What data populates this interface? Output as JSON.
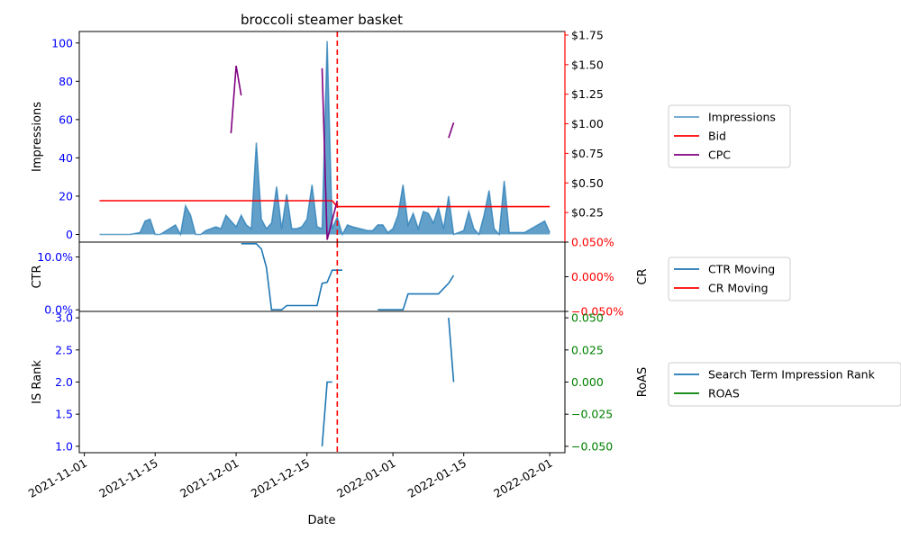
{
  "chart_data": {
    "title": "broccoli steamer basket",
    "xlabel": "Date",
    "x_ticks": [
      "2021-11-01",
      "2021-11-15",
      "2021-12-01",
      "2021-12-15",
      "2022-01-01",
      "2022-01-15",
      "2022-02-01"
    ],
    "x_range": [
      "2021-10-31",
      "2022-02-04"
    ],
    "vline": {
      "date": "2021-12-21",
      "color": "#ff0000",
      "style": "dashed"
    },
    "panels": [
      {
        "type": "area+line",
        "ylabel_left": "Impressions",
        "ylabel_left_color": "#000000",
        "left_tick_color": "#0000ff",
        "ylim_left": [
          -4,
          106
        ],
        "left_ticks": [
          "0",
          "20",
          "40",
          "60",
          "80",
          "100"
        ],
        "left_tick_values": [
          0,
          20,
          40,
          60,
          80,
          100
        ],
        "ylim_right": [
          0,
          1.78
        ],
        "right_ticks": [
          "$0.25",
          "$0.50",
          "$0.75",
          "$1.00",
          "$1.25",
          "$1.50",
          "$1.75"
        ],
        "right_tick_values": [
          0.25,
          0.5,
          0.75,
          1.0,
          1.25,
          1.5,
          1.75
        ],
        "right_tick_color": "#000000",
        "right_axis_color": "#ff0000",
        "series": [
          {
            "name": "Impressions",
            "color": "#1f77b4",
            "axis": "left",
            "kind": "area",
            "x": [
              "2021-11-04",
              "2021-11-06",
              "2021-11-08",
              "2021-11-10",
              "2021-11-12",
              "2021-11-13",
              "2021-11-14",
              "2021-11-15",
              "2021-11-16",
              "2021-11-19",
              "2021-11-20",
              "2021-11-21",
              "2021-11-22",
              "2021-11-23",
              "2021-11-24",
              "2021-11-25",
              "2021-11-27",
              "2021-11-28",
              "2021-11-29",
              "2021-11-30",
              "2021-12-01",
              "2021-12-02",
              "2021-12-03",
              "2021-12-04",
              "2021-12-05",
              "2021-12-06",
              "2021-12-07",
              "2021-12-08",
              "2021-12-09",
              "2021-12-10",
              "2021-12-11",
              "2021-12-12",
              "2021-12-13",
              "2021-12-14",
              "2021-12-15",
              "2021-12-16",
              "2021-12-17",
              "2021-12-18",
              "2021-12-19",
              "2021-12-20",
              "2021-12-21",
              "2021-12-22",
              "2021-12-23",
              "2021-12-24",
              "2021-12-27",
              "2021-12-28",
              "2021-12-29",
              "2021-12-30",
              "2021-12-31",
              "2022-01-01",
              "2022-01-02",
              "2022-01-03",
              "2022-01-04",
              "2022-01-05",
              "2022-01-06",
              "2022-01-07",
              "2022-01-08",
              "2022-01-09",
              "2022-01-10",
              "2022-01-11",
              "2022-01-12",
              "2022-01-13",
              "2022-01-15",
              "2022-01-16",
              "2022-01-17",
              "2022-01-18",
              "2022-01-19",
              "2022-01-20",
              "2022-01-21",
              "2022-01-22",
              "2022-01-23",
              "2022-01-24",
              "2022-01-25",
              "2022-01-26",
              "2022-01-27",
              "2022-01-31",
              "2022-02-01"
            ],
            "y": [
              0,
              0,
              0,
              0,
              1,
              7,
              8,
              0,
              0,
              5,
              0,
              15,
              10,
              0,
              0,
              2,
              4,
              3,
              10,
              7,
              4,
              10,
              5,
              3,
              48,
              8,
              3,
              6,
              25,
              3,
              21,
              3,
              3,
              4,
              8,
              26,
              4,
              3,
              101,
              3,
              9,
              0,
              5,
              4,
              2,
              2,
              5,
              5,
              1,
              3,
              10,
              26,
              5,
              11,
              3,
              12,
              11,
              6,
              14,
              3,
              20,
              0,
              2,
              12,
              3,
              0,
              10,
              23,
              3,
              0,
              28,
              1,
              1,
              1,
              1,
              7,
              1
            ]
          },
          {
            "name": "Bid",
            "color": "#ff0000",
            "axis": "right",
            "kind": "line",
            "x": [
              "2021-11-04",
              "2021-12-20",
              "2021-12-21",
              "2022-02-01"
            ],
            "y": [
              0.35,
              0.35,
              0.3,
              0.3
            ]
          },
          {
            "name": "CPC",
            "color": "#800080",
            "axis": "right",
            "kind": "line",
            "segments": [
              {
                "x": [
                  "2021-11-30",
                  "2021-12-01",
                  "2021-12-02"
                ],
                "y": [
                  0.92,
                  1.49,
                  1.24
                ]
              },
              {
                "x": [
                  "2021-12-18",
                  "2021-12-19",
                  "2021-12-21"
                ],
                "y": [
                  1.47,
                  0.02,
                  0.35
                ]
              },
              {
                "x": [
                  "2022-01-12",
                  "2022-01-13"
                ],
                "y": [
                  0.88,
                  1.01
                ]
              }
            ]
          }
        ],
        "legend": [
          "Impressions",
          "Bid",
          "CPC"
        ]
      },
      {
        "type": "line",
        "ylabel_left": "CTR",
        "ylabel_left_color": "#000000",
        "left_tick_color": "#0000ff",
        "ylim_left": [
          -0.3,
          12.8
        ],
        "left_ticks": [
          "0.0%",
          "10.0%"
        ],
        "left_tick_values": [
          0,
          10
        ],
        "ylabel_right": "CR",
        "ylim_right": [
          -0.05,
          0.05
        ],
        "right_ticks": [
          "0.050%",
          "0.000%",
          "−0.050%"
        ],
        "right_tick_values": [
          0.05,
          0.0,
          -0.05
        ],
        "right_tick_color": "#ff0000",
        "series": [
          {
            "name": "CTR Moving",
            "color": "#1f77b4",
            "axis": "left",
            "kind": "line",
            "segments": [
              {
                "x": [
                  "2021-12-02",
                  "2021-12-05",
                  "2021-12-06",
                  "2021-12-07",
                  "2021-12-08",
                  "2021-12-10",
                  "2021-12-11",
                  "2021-12-17",
                  "2021-12-18",
                  "2021-12-19",
                  "2021-12-20",
                  "2021-12-22"
                ],
                "y": [
                  12.5,
                  12.5,
                  11.5,
                  8,
                  0,
                  0,
                  0.8,
                  0.8,
                  5,
                  5.2,
                  7.5,
                  7.5
                ]
              },
              {
                "x": [
                  "2021-12-29",
                  "2022-01-02",
                  "2022-01-03",
                  "2022-01-04",
                  "2022-01-10",
                  "2022-01-12",
                  "2022-01-13"
                ],
                "y": [
                  0,
                  0,
                  0,
                  3,
                  3,
                  5,
                  6.5
                ]
              }
            ]
          },
          {
            "name": "CR Moving",
            "color": "#ff0000",
            "axis": "right",
            "kind": "line",
            "segments": []
          }
        ],
        "legend": [
          "CTR Moving",
          "CR Moving"
        ]
      },
      {
        "type": "line",
        "ylabel_left": "IS Rank",
        "ylabel_left_color": "#000000",
        "left_tick_color": "#0000ff",
        "ylim_left": [
          0.9,
          3.1
        ],
        "left_ticks": [
          "1.0",
          "1.5",
          "2.0",
          "2.5",
          "3.0"
        ],
        "left_tick_values": [
          1.0,
          1.5,
          2.0,
          2.5,
          3.0
        ],
        "ylabel_right": "RoAS",
        "ylim_right": [
          -0.055,
          0.055
        ],
        "right_ticks": [
          "0.050",
          "0.025",
          "0.000",
          "−0.025",
          "−0.050"
        ],
        "right_tick_values": [
          0.05,
          0.025,
          0.0,
          -0.025,
          -0.05
        ],
        "right_tick_color": "#008000",
        "series": [
          {
            "name": "Search Term Impression Rank",
            "color": "#1f77b4",
            "axis": "left",
            "kind": "line",
            "segments": [
              {
                "x": [
                  "2021-12-18",
                  "2021-12-19",
                  "2021-12-20"
                ],
                "y": [
                  1.0,
                  2.0,
                  2.0
                ]
              },
              {
                "x": [
                  "2022-01-12",
                  "2022-01-13"
                ],
                "y": [
                  3.0,
                  2.0
                ]
              }
            ]
          },
          {
            "name": "ROAS",
            "color": "#008000",
            "axis": "right",
            "kind": "line",
            "segments": []
          }
        ],
        "legend": [
          "Search Term Impression Rank",
          "ROAS"
        ]
      }
    ]
  }
}
